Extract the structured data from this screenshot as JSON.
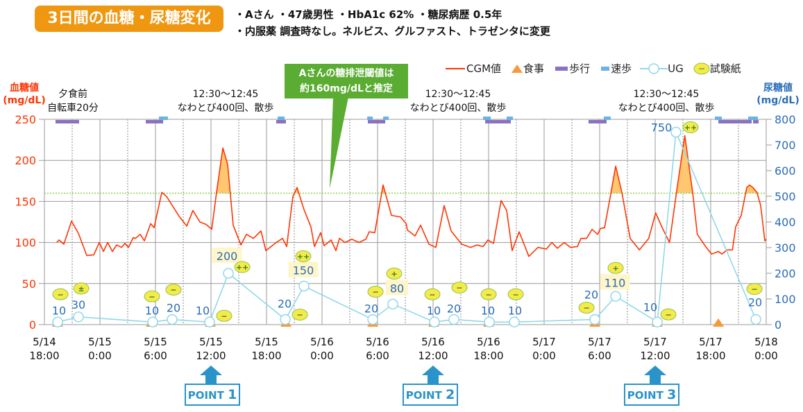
{
  "header": {
    "title": "3日間の血糖・尿糖変化",
    "info_line1": "・Aさん ・47歳男性 ・HbA1c 62% ・糖尿病歴 0.5年",
    "info_line2": "・内服薬 調査時なし。ネルビス、グルファスト、トラゼンタに変更"
  },
  "legend": {
    "cgm": "CGM値",
    "meal": "食事",
    "walk": "歩行",
    "fast_walk": "速歩",
    "ug": "UG",
    "strip": "試験紙",
    "strip_symbol": "−"
  },
  "callout": {
    "line1": "Aさんの糖排泄閾値は",
    "line2": "約160mg/dLと推定"
  },
  "annotations": [
    {
      "line1": "夕食前",
      "line2": "自転車20分"
    },
    {
      "line1": "12:30〜12:45",
      "line2": "なわとび400回、散歩"
    },
    {
      "line1": "12:30〜12:45",
      "line2": "なわとび400回、散歩"
    },
    {
      "line1": "12:30〜12:45",
      "line2": "なわとび400回、散歩"
    }
  ],
  "points": [
    {
      "label": "POINT",
      "num": "1"
    },
    {
      "label": "POINT",
      "num": "2"
    },
    {
      "label": "POINT",
      "num": "3"
    }
  ],
  "colors": {
    "cgm": "#ff3300",
    "ug": "#8fd8e8",
    "meal": "#f7983a",
    "walk": "#8a72c0",
    "fast_walk": "#6ab4e4",
    "fill": "#ffc870",
    "threshold": "#8fd04a",
    "left_axis": "#ff3300",
    "right_axis": "#2a6db8",
    "strip": "#f5ea4a"
  },
  "chart_data": {
    "type": "line",
    "title": "3日間の血糖・尿糖変化",
    "x_unit": "hours since 5/14 18:00",
    "xlim": [
      0,
      78
    ],
    "x_ticks": [
      {
        "h": 0,
        "d": "5/14",
        "t": "18:00"
      },
      {
        "h": 6,
        "d": "5/15",
        "t": "0:00"
      },
      {
        "h": 12,
        "d": "5/15",
        "t": "6:00"
      },
      {
        "h": 18,
        "d": "5/15",
        "t": "12:00"
      },
      {
        "h": 24,
        "d": "5/15",
        "t": "18:00"
      },
      {
        "h": 30,
        "d": "5/16",
        "t": "0:00"
      },
      {
        "h": 36,
        "d": "5/16",
        "t": "6:00"
      },
      {
        "h": 42,
        "d": "5/16",
        "t": "12:00"
      },
      {
        "h": 48,
        "d": "5/16",
        "t": "18:00"
      },
      {
        "h": 54,
        "d": "5/17",
        "t": "0:00"
      },
      {
        "h": 60,
        "d": "5/17",
        "t": "6:00"
      },
      {
        "h": 66,
        "d": "5/17",
        "t": "12:00"
      },
      {
        "h": 72,
        "d": "5/17",
        "t": "18:00"
      },
      {
        "h": 78,
        "d": "5/18",
        "t": "0:00"
      }
    ],
    "left_axis": {
      "label1": "血糖値",
      "label2": "(mg/dL)",
      "ylim": [
        0,
        250
      ],
      "ticks": [
        "0",
        "50",
        "100",
        "150",
        "200",
        "250"
      ]
    },
    "right_axis": {
      "label1": "尿糖値",
      "label2": "(mg/dL)",
      "ylim": [
        0,
        800
      ],
      "ticks": [
        "0",
        "100",
        "200",
        "300",
        "400",
        "500",
        "600",
        "700",
        "800"
      ]
    },
    "threshold": 160,
    "cgm": [
      [
        1.33,
        100
      ],
      [
        1.58,
        103
      ],
      [
        2.1,
        98
      ],
      [
        2.93,
        126
      ],
      [
        3.68,
        111
      ],
      [
        4.58,
        84
      ],
      [
        5.33,
        85
      ],
      [
        5.93,
        100
      ],
      [
        6.38,
        89
      ],
      [
        6.83,
        100
      ],
      [
        7.35,
        89
      ],
      [
        7.8,
        97
      ],
      [
        8.33,
        94
      ],
      [
        8.7,
        99
      ],
      [
        9.08,
        94
      ],
      [
        9.6,
        106
      ],
      [
        9.83,
        105
      ],
      [
        10.35,
        110
      ],
      [
        10.8,
        102
      ],
      [
        11.48,
        123
      ],
      [
        11.85,
        118
      ],
      [
        12.68,
        161
      ],
      [
        13.2,
        156
      ],
      [
        14.55,
        132
      ],
      [
        15.38,
        120
      ],
      [
        16.05,
        139
      ],
      [
        16.8,
        125
      ],
      [
        17.48,
        122
      ],
      [
        18.08,
        116
      ],
      [
        18.6,
        161
      ],
      [
        19.28,
        215
      ],
      [
        19.8,
        195
      ],
      [
        20.4,
        121
      ],
      [
        21.23,
        97
      ],
      [
        21.83,
        110
      ],
      [
        22.58,
        105
      ],
      [
        23.4,
        114
      ],
      [
        23.93,
        90
      ],
      [
        25.05,
        100
      ],
      [
        25.73,
        105
      ],
      [
        26.18,
        95
      ],
      [
        26.85,
        156
      ],
      [
        27.3,
        167
      ],
      [
        28.05,
        140
      ],
      [
        28.8,
        119
      ],
      [
        29.18,
        95
      ],
      [
        29.85,
        112
      ],
      [
        30.23,
        96
      ],
      [
        30.98,
        103
      ],
      [
        31.5,
        90
      ],
      [
        31.88,
        105
      ],
      [
        32.48,
        100
      ],
      [
        33.23,
        104
      ],
      [
        33.98,
        100
      ],
      [
        34.73,
        104
      ],
      [
        35.1,
        113
      ],
      [
        35.7,
        112
      ],
      [
        36.6,
        170
      ],
      [
        37.5,
        133
      ],
      [
        38.48,
        131
      ],
      [
        39.08,
        123
      ],
      [
        39.23,
        115
      ],
      [
        40.05,
        108
      ],
      [
        40.65,
        121
      ],
      [
        41.55,
        98
      ],
      [
        42.3,
        94
      ],
      [
        43.2,
        145
      ],
      [
        43.95,
        114
      ],
      [
        45.08,
        98
      ],
      [
        46.05,
        94
      ],
      [
        46.73,
        97
      ],
      [
        47.4,
        95
      ],
      [
        47.93,
        103
      ],
      [
        48.53,
        99
      ],
      [
        49.35,
        151
      ],
      [
        49.95,
        139
      ],
      [
        50.55,
        90
      ],
      [
        51.3,
        113
      ],
      [
        52.35,
        83
      ],
      [
        53.33,
        94
      ],
      [
        54.23,
        92
      ],
      [
        54.83,
        100
      ],
      [
        55.43,
        93
      ],
      [
        56.18,
        100
      ],
      [
        56.85,
        94
      ],
      [
        57.6,
        95
      ],
      [
        57.98,
        105
      ],
      [
        58.58,
        105
      ],
      [
        59.18,
        116
      ],
      [
        59.78,
        110
      ],
      [
        60.08,
        117
      ],
      [
        60.53,
        118
      ],
      [
        61.2,
        159
      ],
      [
        61.73,
        193
      ],
      [
        62.4,
        161
      ],
      [
        63.3,
        105
      ],
      [
        64.3,
        91
      ],
      [
        65.3,
        105
      ],
      [
        66.05,
        136
      ],
      [
        66.8,
        117
      ],
      [
        67.55,
        100
      ],
      [
        68.3,
        161
      ],
      [
        69.2,
        230
      ],
      [
        70.05,
        161
      ],
      [
        70.55,
        110
      ],
      [
        71.45,
        95
      ],
      [
        72.1,
        86
      ],
      [
        72.85,
        89
      ],
      [
        73.2,
        86
      ],
      [
        73.8,
        91
      ],
      [
        74.35,
        91
      ],
      [
        74.7,
        119
      ],
      [
        75.3,
        133
      ],
      [
        75.9,
        167
      ],
      [
        76.2,
        170
      ],
      [
        76.55,
        167
      ],
      [
        77.0,
        161
      ],
      [
        77.4,
        145
      ],
      [
        77.85,
        102
      ],
      [
        78,
        104
      ]
    ],
    "ug": [
      {
        "h": 1.43,
        "v": 10,
        "label": "10",
        "strip": "−"
      },
      {
        "h": 3.68,
        "v": 30,
        "label": "30",
        "strip": "±"
      },
      {
        "h": 11.7,
        "v": 10,
        "label": "10",
        "strip": "−"
      },
      {
        "h": 13.8,
        "v": 20,
        "label": "20",
        "strip": "−"
      },
      {
        "h": 17.85,
        "v": 10,
        "label": "10",
        "strip": "−"
      },
      {
        "h": 19.88,
        "v": 200,
        "label": "200",
        "strip": "++",
        "boxed": true
      },
      {
        "h": 26.03,
        "v": 20,
        "label": "20",
        "strip": "−"
      },
      {
        "h": 28.05,
        "v": 150,
        "label": "150",
        "strip": "++",
        "boxed": true
      },
      {
        "h": 35.48,
        "v": 20,
        "label": "20",
        "strip": "−"
      },
      {
        "h": 37.65,
        "v": 80,
        "label": "80",
        "strip": "+",
        "boxed": true
      },
      {
        "h": 42.15,
        "v": 10,
        "label": "10",
        "strip": "−"
      },
      {
        "h": 44.25,
        "v": 20,
        "label": "20",
        "strip": "−"
      },
      {
        "h": 48.08,
        "v": 10,
        "label": "10",
        "strip": "−"
      },
      {
        "h": 50.78,
        "v": 10,
        "label": "10",
        "strip": "−"
      },
      {
        "h": 59.48,
        "v": 20,
        "label": "20",
        "strip": "−"
      },
      {
        "h": 61.73,
        "v": 110,
        "label": "110",
        "strip": "+",
        "boxed": true
      },
      {
        "h": 66.23,
        "v": 10,
        "label": "10",
        "strip": "−"
      },
      {
        "h": 68.25,
        "v": 750,
        "label": "750",
        "strip": "++"
      },
      {
        "h": 76.88,
        "v": 20,
        "label": "20",
        "strip": "−"
      }
    ],
    "meals": [
      1.43,
      11.55,
      17.93,
      26.1,
      35.48,
      42.08,
      48.0,
      59.48,
      66.23,
      72.83
    ],
    "walk": [
      [
        1.2,
        3.75
      ],
      [
        10.95,
        12.83
      ],
      [
        25.05,
        26.1
      ],
      [
        34.95,
        36.83
      ],
      [
        47.63,
        50.4
      ],
      [
        58.8,
        60.75
      ],
      [
        72.83,
        76.43
      ],
      [
        76.58,
        77.18
      ]
    ],
    "fast_walk": [
      [
        12.38,
        13.35
      ],
      [
        25.2,
        25.95
      ],
      [
        34.88,
        35.48
      ],
      [
        36.6,
        37.2
      ],
      [
        47.4,
        48.23
      ],
      [
        49.95,
        50.63
      ],
      [
        60.45,
        61.2
      ],
      [
        72.45,
        73.2
      ],
      [
        76.05,
        77.1
      ]
    ]
  }
}
